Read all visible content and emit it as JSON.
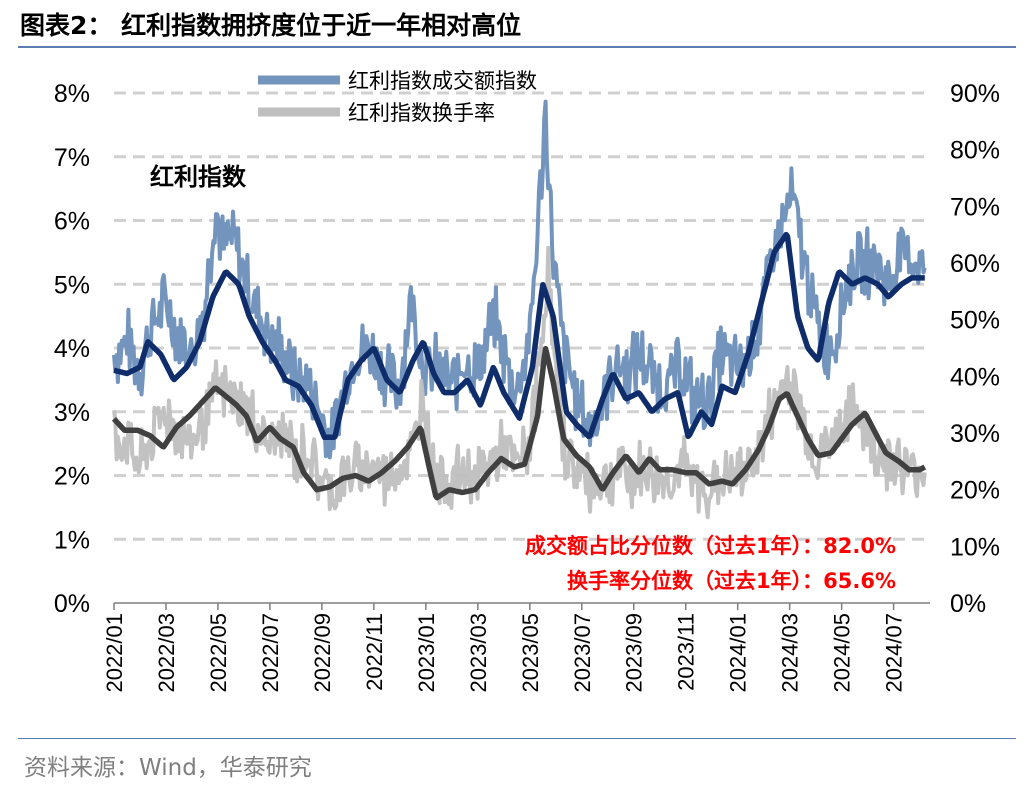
{
  "figure": {
    "title": "图表2： 红利指数拥挤度位于近一年相对高位",
    "source": "资料来源：Wind，华泰研究"
  },
  "chart_data": {
    "type": "line",
    "inner_label": "红利指数",
    "annotations": [
      "成交额占比分位数（过去1年）：82.0%",
      "换手率分位数（过去1年）：65.6%"
    ],
    "left_axis": {
      "min": 0,
      "max": 8,
      "ticks": [
        "0%",
        "1%",
        "2%",
        "3%",
        "4%",
        "5%",
        "6%",
        "7%",
        "8%"
      ]
    },
    "right_axis": {
      "min": 0,
      "max": 90,
      "ticks": [
        "0%",
        "10%",
        "20%",
        "30%",
        "40%",
        "50%",
        "60%",
        "70%",
        "80%",
        "90%"
      ]
    },
    "x_ticks": [
      "2022/01",
      "2022/03",
      "2022/05",
      "2022/07",
      "2022/09",
      "2022/11",
      "2023/01",
      "2023/03",
      "2023/05",
      "2023/07",
      "2023/09",
      "2023/11",
      "2024/01",
      "2024/03",
      "2024/05",
      "2024/07"
    ],
    "x_range_months": [
      0,
      31.4
    ],
    "grid": true,
    "legend_position": "top-center",
    "series": [
      {
        "name": "红利指数成交额指数",
        "axis": "left",
        "color": "#7394bd",
        "ma_color": "#0f2c6b",
        "anchors": [
          [
            0,
            3.9
          ],
          [
            0.5,
            4.1
          ],
          [
            1.0,
            3.7
          ],
          [
            1.5,
            4.4
          ],
          [
            2.0,
            4.7
          ],
          [
            2.5,
            4.2
          ],
          [
            3.0,
            3.9
          ],
          [
            3.5,
            4.7
          ],
          [
            3.9,
            6.2
          ],
          [
            4.2,
            5.6
          ],
          [
            4.6,
            5.7
          ],
          [
            5.0,
            5.2
          ],
          [
            5.5,
            4.6
          ],
          [
            6.0,
            4.2
          ],
          [
            6.5,
            3.9
          ],
          [
            7.0,
            3.5
          ],
          [
            7.5,
            3.4
          ],
          [
            8.0,
            2.9
          ],
          [
            8.4,
            2.5
          ],
          [
            8.8,
            3.3
          ],
          [
            9.3,
            3.9
          ],
          [
            9.8,
            4.0
          ],
          [
            10.2,
            3.8
          ],
          [
            10.6,
            3.5
          ],
          [
            11.0,
            3.4
          ],
          [
            11.4,
            4.8
          ],
          [
            11.8,
            3.9
          ],
          [
            12.1,
            3.6
          ],
          [
            12.5,
            3.7
          ],
          [
            13.0,
            3.4
          ],
          [
            13.5,
            3.8
          ],
          [
            14.0,
            3.6
          ],
          [
            14.6,
            4.5
          ],
          [
            15.0,
            3.9
          ],
          [
            15.5,
            3.3
          ],
          [
            16.0,
            4.2
          ],
          [
            16.3,
            5.8
          ],
          [
            16.6,
            7.7
          ],
          [
            16.9,
            5.4
          ],
          [
            17.3,
            4.0
          ],
          [
            17.8,
            3.2
          ],
          [
            18.3,
            2.7
          ],
          [
            18.8,
            3.2
          ],
          [
            19.3,
            3.8
          ],
          [
            19.8,
            3.6
          ],
          [
            20.3,
            3.9
          ],
          [
            20.8,
            3.5
          ],
          [
            21.3,
            3.4
          ],
          [
            21.8,
            3.8
          ],
          [
            22.3,
            3.2
          ],
          [
            22.8,
            3.1
          ],
          [
            23.3,
            3.9
          ],
          [
            23.8,
            3.7
          ],
          [
            24.3,
            3.8
          ],
          [
            24.8,
            4.3
          ],
          [
            25.3,
            5.4
          ],
          [
            25.8,
            6.0
          ],
          [
            26.1,
            6.4
          ],
          [
            26.5,
            5.5
          ],
          [
            26.9,
            4.6
          ],
          [
            27.3,
            4.0
          ],
          [
            27.8,
            4.2
          ],
          [
            28.3,
            5.2
          ],
          [
            28.8,
            5.3
          ],
          [
            29.3,
            5.4
          ],
          [
            29.8,
            5.0
          ],
          [
            30.3,
            5.5
          ],
          [
            30.8,
            5.4
          ],
          [
            31.2,
            5.3
          ]
        ],
        "amplitude": 0.45,
        "ma_anchors": [
          [
            0,
            3.65
          ],
          [
            0.5,
            3.6
          ],
          [
            1.0,
            3.7
          ],
          [
            1.3,
            4.1
          ],
          [
            1.8,
            3.9
          ],
          [
            2.3,
            3.5
          ],
          [
            2.8,
            3.7
          ],
          [
            3.3,
            4.1
          ],
          [
            3.8,
            4.8
          ],
          [
            4.3,
            5.2
          ],
          [
            4.8,
            5.0
          ],
          [
            5.2,
            4.5
          ],
          [
            5.7,
            4.1
          ],
          [
            6.2,
            3.8
          ],
          [
            6.6,
            3.5
          ],
          [
            7.1,
            3.4
          ],
          [
            7.6,
            3.1
          ],
          [
            8.1,
            2.6
          ],
          [
            8.5,
            2.6
          ],
          [
            9.0,
            3.5
          ],
          [
            9.5,
            3.8
          ],
          [
            10.0,
            4.0
          ],
          [
            10.5,
            3.5
          ],
          [
            11.0,
            3.3
          ],
          [
            11.5,
            3.8
          ],
          [
            11.9,
            4.1
          ],
          [
            12.3,
            3.6
          ],
          [
            12.7,
            3.3
          ],
          [
            13.1,
            3.3
          ],
          [
            13.6,
            3.5
          ],
          [
            14.1,
            3.1
          ],
          [
            14.6,
            3.7
          ],
          [
            15.0,
            3.3
          ],
          [
            15.6,
            2.9
          ],
          [
            16.1,
            3.7
          ],
          [
            16.5,
            5.0
          ],
          [
            16.9,
            4.5
          ],
          [
            17.4,
            3.0
          ],
          [
            17.8,
            2.8
          ],
          [
            18.3,
            2.6
          ],
          [
            18.8,
            3.2
          ],
          [
            19.2,
            3.6
          ],
          [
            19.7,
            3.2
          ],
          [
            20.2,
            3.3
          ],
          [
            20.7,
            3.0
          ],
          [
            21.2,
            3.2
          ],
          [
            21.7,
            3.3
          ],
          [
            22.1,
            2.6
          ],
          [
            22.6,
            3.0
          ],
          [
            23.0,
            2.8
          ],
          [
            23.4,
            3.4
          ],
          [
            23.9,
            3.3
          ],
          [
            24.4,
            3.9
          ],
          [
            24.9,
            4.7
          ],
          [
            25.4,
            5.5
          ],
          [
            25.9,
            5.8
          ],
          [
            26.3,
            4.5
          ],
          [
            26.7,
            4.0
          ],
          [
            27.1,
            3.8
          ],
          [
            27.5,
            4.7
          ],
          [
            27.9,
            5.2
          ],
          [
            28.4,
            5.0
          ],
          [
            28.9,
            5.1
          ],
          [
            29.4,
            5.0
          ],
          [
            29.8,
            4.8
          ],
          [
            30.3,
            5.0
          ],
          [
            30.7,
            5.1
          ],
          [
            31.2,
            5.1
          ]
        ]
      },
      {
        "name": "红利指数换手率",
        "axis": "right",
        "color": "#bfbfbf",
        "ma_color": "#404040",
        "anchors": [
          [
            0,
            30
          ],
          [
            0.5,
            28
          ],
          [
            1.0,
            24
          ],
          [
            1.5,
            30
          ],
          [
            2.0,
            34
          ],
          [
            2.5,
            30
          ],
          [
            3.0,
            28
          ],
          [
            3.5,
            33
          ],
          [
            4.0,
            38
          ],
          [
            4.5,
            36
          ],
          [
            5.0,
            35
          ],
          [
            5.5,
            31
          ],
          [
            6.0,
            28
          ],
          [
            6.5,
            30
          ],
          [
            7.0,
            26
          ],
          [
            7.5,
            27
          ],
          [
            8.0,
            21
          ],
          [
            8.5,
            20
          ],
          [
            9.0,
            23
          ],
          [
            9.5,
            23
          ],
          [
            10.0,
            24
          ],
          [
            10.5,
            22
          ],
          [
            11.0,
            24
          ],
          [
            11.5,
            27
          ],
          [
            11.9,
            38
          ],
          [
            12.2,
            24
          ],
          [
            12.6,
            22
          ],
          [
            13.0,
            22
          ],
          [
            13.5,
            23
          ],
          [
            14.0,
            22
          ],
          [
            14.5,
            25
          ],
          [
            15.0,
            27
          ],
          [
            15.5,
            24
          ],
          [
            16.0,
            28
          ],
          [
            16.4,
            44
          ],
          [
            16.7,
            58
          ],
          [
            17.0,
            40
          ],
          [
            17.4,
            26
          ],
          [
            17.9,
            23
          ],
          [
            18.4,
            21
          ],
          [
            18.9,
            22
          ],
          [
            19.4,
            24
          ],
          [
            19.9,
            22
          ],
          [
            20.4,
            24
          ],
          [
            20.9,
            22
          ],
          [
            21.4,
            22
          ],
          [
            21.9,
            24
          ],
          [
            22.4,
            21
          ],
          [
            22.9,
            20
          ],
          [
            23.4,
            22
          ],
          [
            23.9,
            22
          ],
          [
            24.4,
            24
          ],
          [
            24.9,
            28
          ],
          [
            25.4,
            35
          ],
          [
            25.9,
            40
          ],
          [
            26.3,
            36
          ],
          [
            26.7,
            30
          ],
          [
            27.1,
            26
          ],
          [
            27.6,
            28
          ],
          [
            28.1,
            32
          ],
          [
            28.6,
            34
          ],
          [
            29.1,
            28
          ],
          [
            29.6,
            26
          ],
          [
            30.1,
            25
          ],
          [
            30.6,
            23
          ],
          [
            31.2,
            24
          ]
        ],
        "amplitude": 4.5,
        "ma_anchors": [
          [
            0,
            32.5
          ],
          [
            0.4,
            30.5
          ],
          [
            0.9,
            30.5
          ],
          [
            1.4,
            29.5
          ],
          [
            1.9,
            27.5
          ],
          [
            2.4,
            31
          ],
          [
            2.9,
            33
          ],
          [
            3.4,
            35.5
          ],
          [
            3.9,
            38
          ],
          [
            4.3,
            36.5
          ],
          [
            4.7,
            35
          ],
          [
            5.1,
            33
          ],
          [
            5.5,
            28.5
          ],
          [
            6.0,
            31
          ],
          [
            6.4,
            29
          ],
          [
            6.9,
            27.5
          ],
          [
            7.3,
            23
          ],
          [
            7.8,
            20
          ],
          [
            8.3,
            20.5
          ],
          [
            8.8,
            22
          ],
          [
            9.3,
            22.5
          ],
          [
            9.8,
            21.5
          ],
          [
            10.3,
            23
          ],
          [
            10.8,
            25
          ],
          [
            11.3,
            27.5
          ],
          [
            11.8,
            31
          ],
          [
            12.1,
            24.5
          ],
          [
            12.4,
            18.5
          ],
          [
            12.9,
            20
          ],
          [
            13.4,
            19.5
          ],
          [
            13.9,
            20
          ],
          [
            14.4,
            23
          ],
          [
            14.9,
            25.5
          ],
          [
            15.4,
            24
          ],
          [
            15.8,
            24.5
          ],
          [
            16.3,
            33
          ],
          [
            16.6,
            45
          ],
          [
            16.9,
            39
          ],
          [
            17.3,
            29
          ],
          [
            17.8,
            26
          ],
          [
            18.3,
            24
          ],
          [
            18.8,
            20
          ],
          [
            19.2,
            23
          ],
          [
            19.7,
            26
          ],
          [
            20.2,
            23
          ],
          [
            20.6,
            25.5
          ],
          [
            21.0,
            23.5
          ],
          [
            21.5,
            23.5
          ],
          [
            22.0,
            23
          ],
          [
            22.4,
            23
          ],
          [
            22.9,
            21
          ],
          [
            23.4,
            21.5
          ],
          [
            23.8,
            21
          ],
          [
            24.3,
            23.5
          ],
          [
            24.8,
            27
          ],
          [
            25.2,
            31
          ],
          [
            25.6,
            36
          ],
          [
            25.9,
            37
          ],
          [
            26.3,
            33
          ],
          [
            26.7,
            29
          ],
          [
            27.1,
            26
          ],
          [
            27.6,
            26.5
          ],
          [
            28.0,
            29
          ],
          [
            28.4,
            31.5
          ],
          [
            28.9,
            33.5
          ],
          [
            29.3,
            30
          ],
          [
            29.7,
            26.5
          ],
          [
            30.2,
            25
          ],
          [
            30.6,
            23.5
          ],
          [
            31.0,
            23.5
          ],
          [
            31.2,
            24
          ]
        ]
      }
    ]
  }
}
